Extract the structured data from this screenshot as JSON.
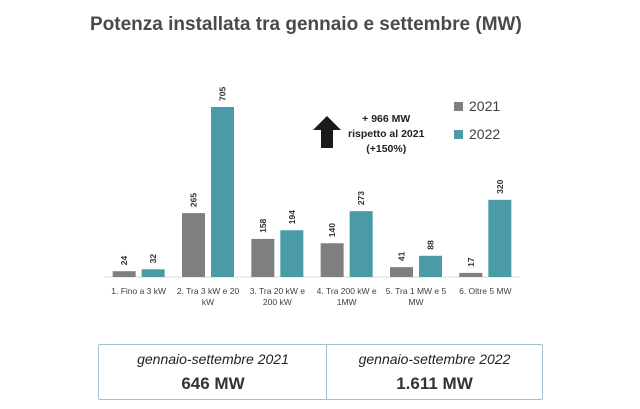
{
  "chart_data": {
    "type": "bar",
    "title": "Potenza installata tra gennaio e settembre (MW)",
    "categories": [
      "1. Fino a 3 kW",
      "2. Tra 3 kW e 20 kW",
      "3. Tra 20 kW e 200 kW",
      "4. Tra 200 kW e 1MW",
      "5. Tra 1 MW e 5 MW",
      "6. Oltre 5 MW"
    ],
    "series": [
      {
        "name": "2021",
        "values": [
          24,
          265,
          158,
          140,
          41,
          17
        ]
      },
      {
        "name": "2022",
        "values": [
          32,
          705,
          194,
          273,
          88,
          320
        ]
      }
    ],
    "ylim": [
      0,
      705
    ],
    "grid": false,
    "legend": "right",
    "colors": {
      "2021": "#7f7f7f",
      "2022": "#4a9aa8"
    }
  },
  "callout": {
    "text": "+ 966 MW\nrispetto al 2021\n(+150%)",
    "icon": "up-arrow-icon"
  },
  "summary": [
    {
      "period": "gennaio-settembre 2021",
      "value": "646 MW"
    },
    {
      "period": "gennaio-settembre 2022",
      "value": "1.611 MW"
    }
  ]
}
